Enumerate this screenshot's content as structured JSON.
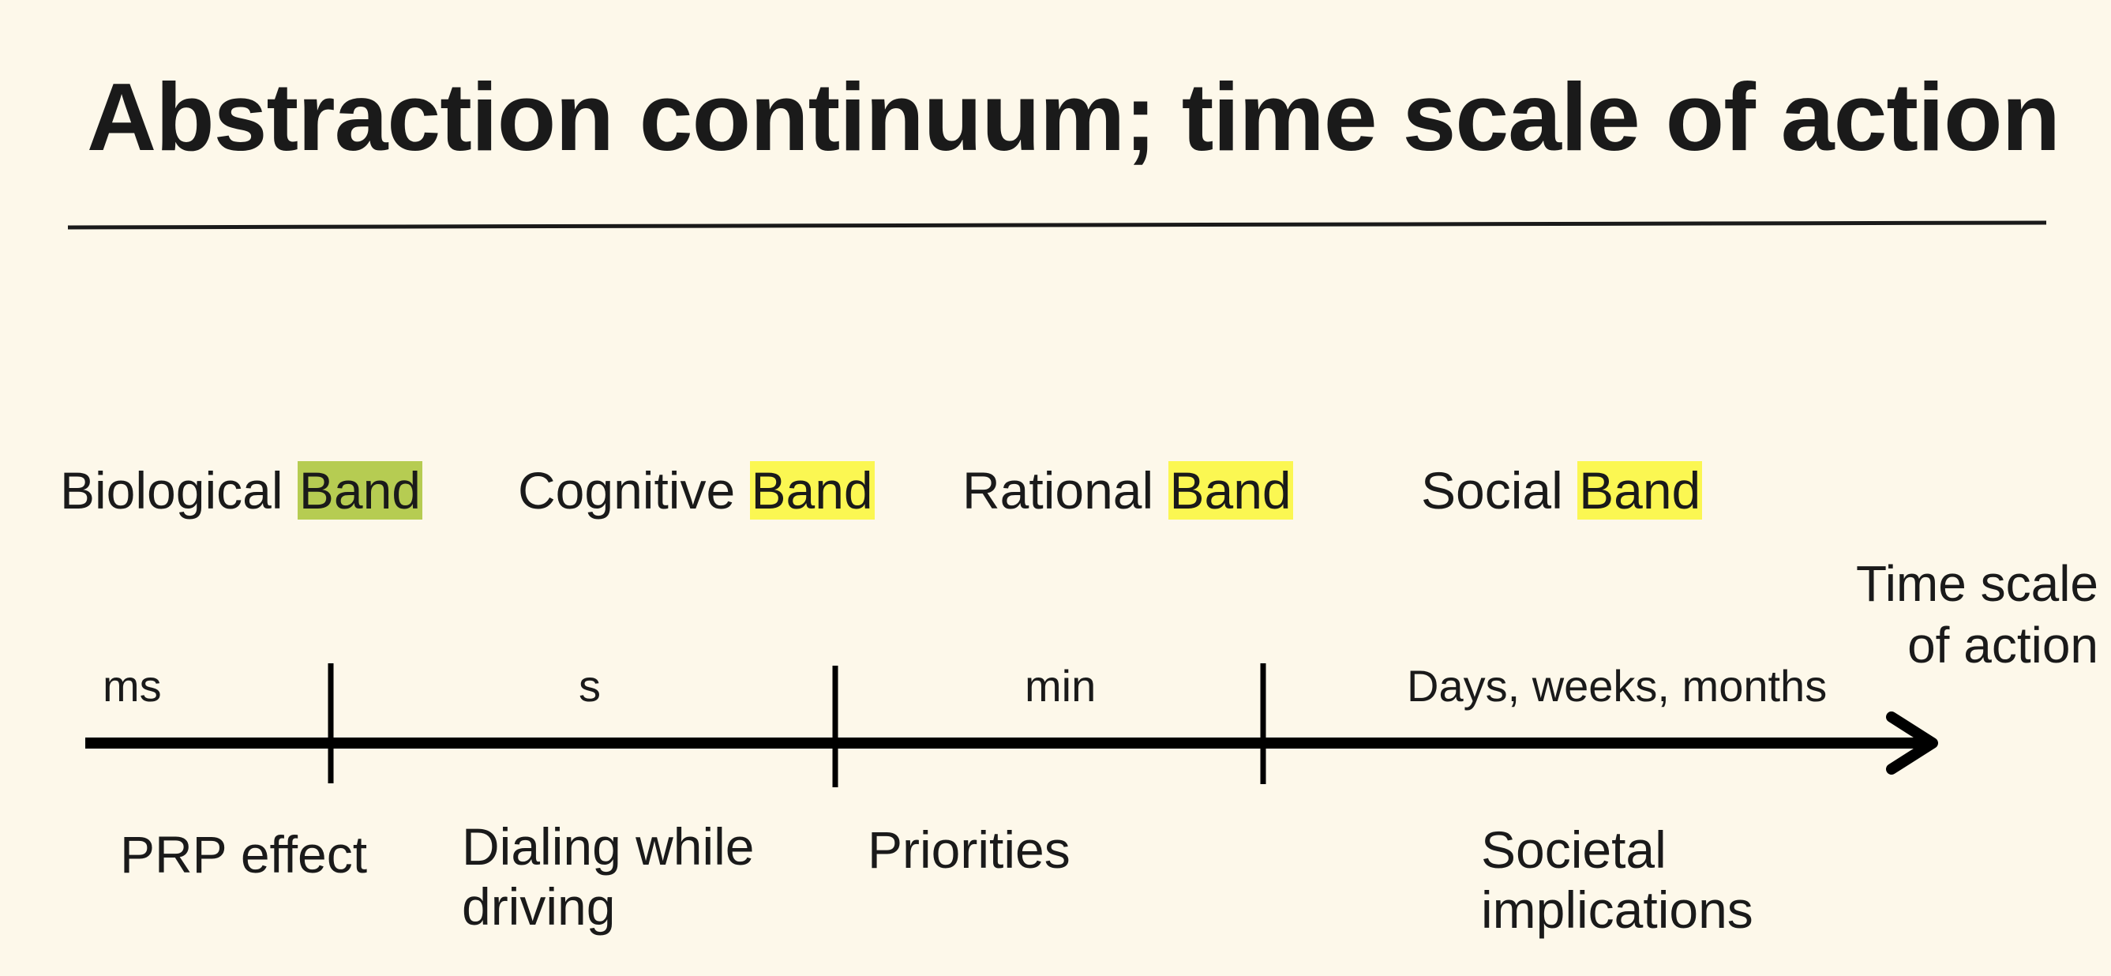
{
  "title": "Abstraction continuum; time scale of action",
  "bands": [
    {
      "prefix": "Biological",
      "word": "Band",
      "highlight": "#b6cc52"
    },
    {
      "prefix": "Cognitive",
      "word": "Band",
      "highlight": "#fbf752"
    },
    {
      "prefix": "Rational",
      "word": "Band",
      "highlight": "#fbf752"
    },
    {
      "prefix": "Social",
      "word": "Band",
      "highlight": "#fbf752"
    }
  ],
  "axis": {
    "caption_line1": "Time scale",
    "caption_line2": "of action",
    "units": [
      "ms",
      "s",
      "min",
      "Days, weeks, months"
    ]
  },
  "examples": [
    {
      "line1": "PRP effect",
      "line2": ""
    },
    {
      "line1": "Dialing while",
      "line2": "driving"
    },
    {
      "line1": "Priorities",
      "line2": ""
    },
    {
      "line1": "Societal",
      "line2": "implications"
    }
  ],
  "colors": {
    "background": "#fdf8ea",
    "text": "#1a1a1a"
  }
}
